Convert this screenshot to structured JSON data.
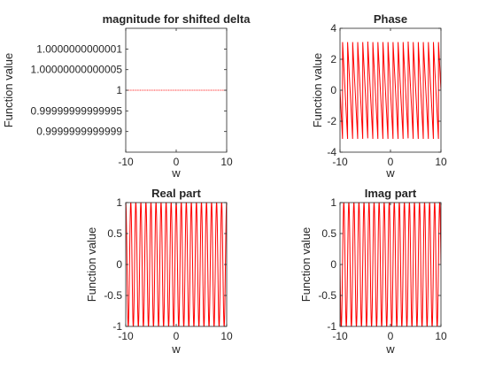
{
  "chart_data": [
    {
      "type": "line",
      "title": "magnitude for shifted delta",
      "xlabel": "w",
      "ylabel": "Function value",
      "xlim": [
        -10,
        10
      ],
      "ylim": [
        0.99999999999985,
        1.00000000000015
      ],
      "xticks": [
        -10,
        0,
        10
      ],
      "xtick_labels": [
        "-10",
        "0",
        "10"
      ],
      "yticks": [
        0.9999999999999,
        0.99999999999995,
        1,
        1.00000000000005,
        1.0000000000001
      ],
      "ytick_labels": [
        "0.9999999999999",
        "0.99999999999995",
        "1",
        "1.00000000000005",
        "1.0000000000001"
      ],
      "series": [
        {
          "color": "#ff0000",
          "function": "constant",
          "value": 1
        }
      ]
    },
    {
      "type": "line",
      "title": "Phase",
      "xlabel": "w",
      "ylabel": "Function value",
      "xlim": [
        -10,
        10
      ],
      "ylim": [
        -4,
        4
      ],
      "xticks": [
        -10,
        0,
        10
      ],
      "xtick_labels": [
        "-10",
        "0",
        "10"
      ],
      "yticks": [
        -4,
        -2,
        0,
        2,
        4
      ],
      "ytick_labels": [
        "-4",
        "-2",
        "0",
        "2",
        "4"
      ],
      "series": [
        {
          "color": "#ff0000",
          "function": "wrapped_phase",
          "amplitude": 3.14159,
          "cycles": 20
        }
      ]
    },
    {
      "type": "line",
      "title": "Real part",
      "xlabel": "w",
      "ylabel": "Function value",
      "xlim": [
        -10,
        10
      ],
      "ylim": [
        -1,
        1
      ],
      "xticks": [
        -10,
        0,
        10
      ],
      "xtick_labels": [
        "-10",
        "0",
        "10"
      ],
      "yticks": [
        -1,
        -0.5,
        0,
        0.5,
        1
      ],
      "ytick_labels": [
        "-1",
        "-0.5",
        "0",
        "0.5",
        "1"
      ],
      "series": [
        {
          "color": "#ff0000",
          "function": "cosine",
          "amplitude": 1,
          "cycles": 20
        }
      ]
    },
    {
      "type": "line",
      "title": "Imag part",
      "xlabel": "w",
      "ylabel": "Function value",
      "xlim": [
        -10,
        10
      ],
      "ylim": [
        -1,
        1
      ],
      "xticks": [
        -10,
        0,
        10
      ],
      "xtick_labels": [
        "-10",
        "0",
        "10"
      ],
      "yticks": [
        -1,
        -0.5,
        0,
        0.5,
        1
      ],
      "ytick_labels": [
        "-1",
        "-0.5",
        "0",
        "0.5",
        "1"
      ],
      "series": [
        {
          "color": "#ff0000",
          "function": "negative_sine",
          "amplitude": 1,
          "cycles": 20
        }
      ]
    }
  ]
}
